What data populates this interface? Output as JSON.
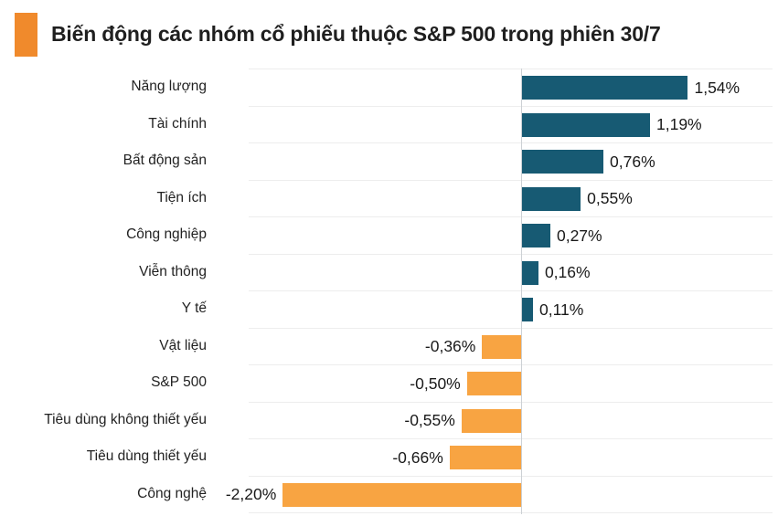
{
  "header": {
    "title": "Biến động các nhóm cổ phiếu thuộc S&P 500 trong phiên 30/7",
    "accent_color": "#f08a2c"
  },
  "chart_data": {
    "type": "bar",
    "orientation": "horizontal",
    "title": "Biến động các nhóm cổ phiếu thuộc S&P 500 trong phiên 30/7",
    "categories": [
      "Năng lượng",
      "Tài chính",
      "Bất động sản",
      "Tiện ích",
      "Công nghiệp",
      "Viễn thông",
      "Y tế",
      "Vật liệu",
      "S&P 500",
      "Tiêu dùng không thiết yếu",
      "Tiêu dùng thiết yếu",
      "Công nghệ"
    ],
    "values": [
      1.54,
      1.19,
      0.76,
      0.55,
      0.27,
      0.16,
      0.11,
      -0.36,
      -0.5,
      -0.55,
      -0.66,
      -2.2
    ],
    "value_labels": [
      "1,54%",
      "1,19%",
      "0,76%",
      "0,55%",
      "0,27%",
      "0,16%",
      "0,11%",
      "-0,36%",
      "-0,50%",
      "-0,55%",
      "-0,66%",
      "-2,20%"
    ],
    "unit": "%",
    "xlim": [
      -2.5,
      2.3
    ],
    "legend": "none",
    "grid": "horizontal row separators, vertical zero axis",
    "colors": {
      "positive_bar": "#175a73",
      "negative_bar": "#f8a442",
      "gridline": "#ededed",
      "axis": "#ccd1d5",
      "text": "#1a1a1a"
    }
  }
}
